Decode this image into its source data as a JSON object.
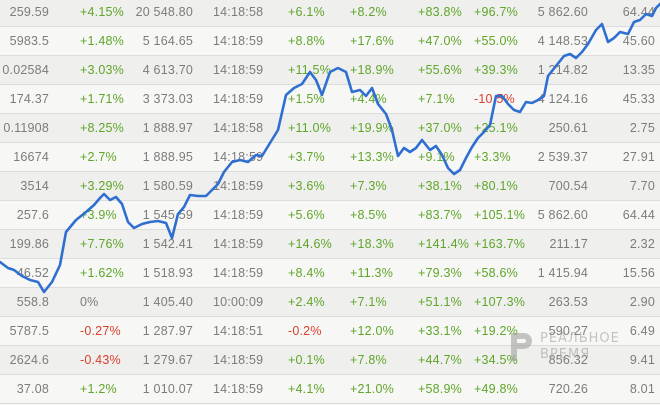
{
  "board": {
    "rows": [
      {
        "c1": "259.59",
        "c2": "+4.15%",
        "c3": "20 548.80",
        "c4": "14:18:58",
        "c5": "+6.1%",
        "c6": "+8.2%",
        "c7": "+83.8%",
        "c8": "+96.7%",
        "c9": "5 862.60",
        "c10": "64.44"
      },
      {
        "c1": "5983.5",
        "c2": "+1.48%",
        "c3": "5 164.65",
        "c4": "14:18:59",
        "c5": "+8.8%",
        "c6": "+17.6%",
        "c7": "+47.0%",
        "c8": "+55.0%",
        "c9": "4 148.53",
        "c10": "45.60"
      },
      {
        "c1": "0.02584",
        "c2": "+3.03%",
        "c3": "4 613.70",
        "c4": "14:18:59",
        "c5": "+11.5%",
        "c6": "+18.9%",
        "c7": "+55.6%",
        "c8": "+39.3%",
        "c9": "1 214.82",
        "c10": "13.35"
      },
      {
        "c1": "174.37",
        "c2": "+1.71%",
        "c3": "3 373.03",
        "c4": "14:18:59",
        "c5": "+1.5%",
        "c6": "+4.4%",
        "c7": "+7.1%",
        "c8": "-10.5%",
        "c9": "4 124.16",
        "c10": "45.33"
      },
      {
        "c1": "0.11908",
        "c2": "+8.25%",
        "c3": "1 888.97",
        "c4": "14:18:58",
        "c5": "+11.0%",
        "c6": "+19.9%",
        "c7": "+37.0%",
        "c8": "+25.1%",
        "c9": "250.61",
        "c10": "2.75"
      },
      {
        "c1": "16674",
        "c2": "+2.7%",
        "c3": "1 888.95",
        "c4": "14:18:59",
        "c5": "+3.7%",
        "c6": "+13.3%",
        "c7": "+9.1%",
        "c8": "+3.3%",
        "c9": "2 539.37",
        "c10": "27.91"
      },
      {
        "c1": "3514",
        "c2": "+3.29%",
        "c3": "1 580.59",
        "c4": "14:18:59",
        "c5": "+3.6%",
        "c6": "+7.3%",
        "c7": "+38.1%",
        "c8": "+80.1%",
        "c9": "700.54",
        "c10": "7.70"
      },
      {
        "c1": "257.6",
        "c2": "+3.9%",
        "c3": "1 545.59",
        "c4": "14:18:59",
        "c5": "+5.6%",
        "c6": "+8.5%",
        "c7": "+83.7%",
        "c8": "+105.1%",
        "c9": "5 862.60",
        "c10": "64.44"
      },
      {
        "c1": "199.86",
        "c2": "+7.76%",
        "c3": "1 542.41",
        "c4": "14:18:59",
        "c5": "+14.6%",
        "c6": "+18.3%",
        "c7": "+141.4%",
        "c8": "+163.7%",
        "c9": "211.17",
        "c10": "2.32"
      },
      {
        "c1": "46.52",
        "c2": "+1.62%",
        "c3": "1 518.93",
        "c4": "14:18:59",
        "c5": "+8.4%",
        "c6": "+11.3%",
        "c7": "+79.3%",
        "c8": "+58.6%",
        "c9": "1 415.94",
        "c10": "15.56"
      },
      {
        "c1": "558.8",
        "c2": "0%",
        "c3": "1 405.40",
        "c4": "10:00:09",
        "c5": "+2.4%",
        "c6": "+7.1%",
        "c7": "+51.1%",
        "c8": "+107.3%",
        "c9": "263.53",
        "c10": "2.90"
      },
      {
        "c1": "5787.5",
        "c2": "-0.27%",
        "c3": "1 287.97",
        "c4": "14:18:51",
        "c5": "-0.2%",
        "c6": "+12.0%",
        "c7": "+33.1%",
        "c8": "+19.2%",
        "c9": "590.27",
        "c10": "6.49"
      },
      {
        "c1": "2624.6",
        "c2": "-0.43%",
        "c3": "1 279.67",
        "c4": "14:18:59",
        "c5": "+0.1%",
        "c6": "+7.8%",
        "c7": "+44.7%",
        "c8": "+34.5%",
        "c9": "856.32",
        "c10": "9.41"
      },
      {
        "c1": "37.08",
        "c2": "+1.2%",
        "c3": "1 010.07",
        "c4": "14:18:59",
        "c5": "+4.1%",
        "c6": "+21.0%",
        "c7": "+58.9%",
        "c8": "+49.8%",
        "c9": "720.26",
        "c10": "8.01"
      }
    ]
  },
  "colors": {
    "positive": "#5fa62a",
    "negative": "#d9402e",
    "neutral": "#7c7c7c",
    "trend_line": "#2f6fd1"
  },
  "watermark": {
    "line1": "РЕАЛЬНОЕ",
    "line2": "ВРЕМЯ",
    "icon": "realnoe-vremya-logo-icon"
  }
}
